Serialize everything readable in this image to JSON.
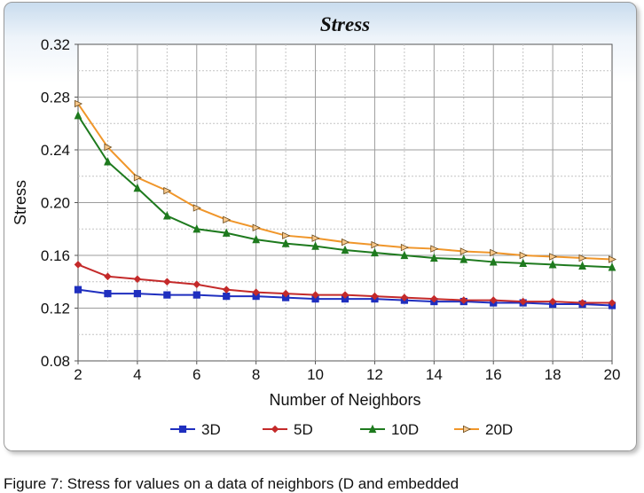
{
  "chart_data": {
    "type": "line",
    "title": "Stress",
    "xlabel": "Number of Neighbors",
    "ylabel": "Stress",
    "xlim": [
      2,
      20
    ],
    "ylim": [
      0.08,
      0.32
    ],
    "x_ticks": [
      "2",
      "4",
      "6",
      "8",
      "10",
      "12",
      "14",
      "16",
      "18",
      "20"
    ],
    "y_ticks": [
      "0.08",
      "0.12",
      "0.16",
      "0.20",
      "0.24",
      "0.28",
      "0.32"
    ],
    "grid": true,
    "legend_position": "bottom",
    "x": [
      2,
      3,
      4,
      5,
      6,
      7,
      8,
      9,
      10,
      11,
      12,
      13,
      14,
      15,
      16,
      17,
      18,
      19,
      20
    ],
    "series": [
      {
        "name": "3D",
        "color": "#1f2fbf",
        "marker": "square",
        "values": [
          0.134,
          0.131,
          0.131,
          0.13,
          0.13,
          0.129,
          0.129,
          0.128,
          0.127,
          0.127,
          0.127,
          0.126,
          0.125,
          0.125,
          0.124,
          0.124,
          0.123,
          0.123,
          0.122
        ]
      },
      {
        "name": "5D",
        "color": "#c42a2a",
        "marker": "diamond",
        "values": [
          0.153,
          0.144,
          0.142,
          0.14,
          0.138,
          0.134,
          0.132,
          0.131,
          0.13,
          0.13,
          0.129,
          0.128,
          0.127,
          0.126,
          0.126,
          0.125,
          0.125,
          0.124,
          0.124
        ]
      },
      {
        "name": "10D",
        "color": "#1e7a1e",
        "marker": "triangle-up",
        "values": [
          0.266,
          0.231,
          0.211,
          0.19,
          0.18,
          0.177,
          0.172,
          0.169,
          0.167,
          0.164,
          0.162,
          0.16,
          0.158,
          0.157,
          0.155,
          0.154,
          0.153,
          0.152,
          0.151
        ]
      },
      {
        "name": "20D",
        "color": "#f0962a",
        "marker": "triangle-right",
        "values": [
          0.275,
          0.242,
          0.219,
          0.209,
          0.196,
          0.187,
          0.181,
          0.175,
          0.173,
          0.17,
          0.168,
          0.166,
          0.165,
          0.163,
          0.162,
          0.16,
          0.159,
          0.158,
          0.157
        ]
      }
    ]
  },
  "caption": "Figure 7: Stress for values on a data of neighbors (D and embedded"
}
